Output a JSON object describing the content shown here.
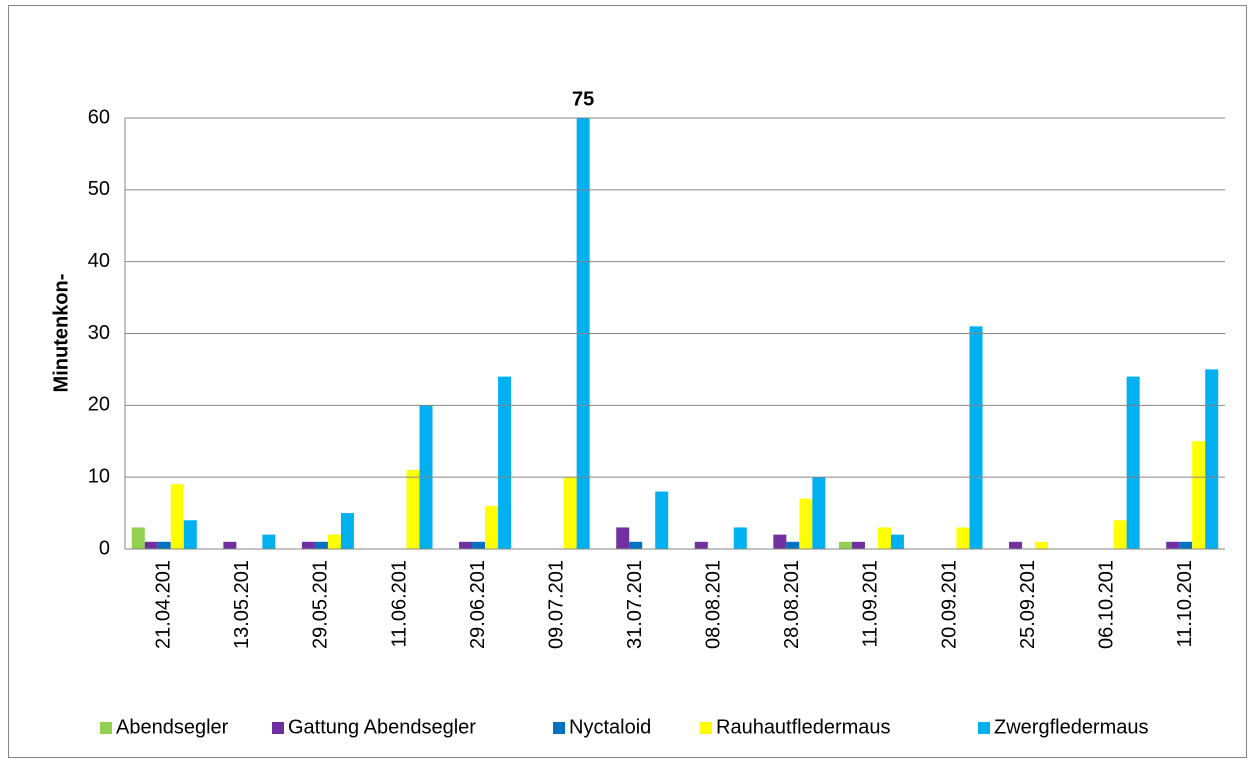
{
  "chart_data": {
    "type": "bar",
    "ylabel": "Minutenkon-",
    "categories": [
      "21.04.201",
      "13.05.201",
      "29.05.201",
      "11.06.201",
      "29.06.201",
      "09.07.201",
      "31.07.201",
      "08.08.201",
      "28.08.201",
      "11.09.201",
      "20.09.201",
      "25.09.201",
      "06.10.201",
      "11.10.201"
    ],
    "series": [
      {
        "name": "Abendsegler",
        "color": "#92d050",
        "values": [
          3,
          0,
          0,
          0,
          0,
          0,
          0,
          0,
          0,
          1,
          0,
          0,
          0,
          0
        ]
      },
      {
        "name": "Gattung Abendsegler",
        "color": "#7030a0",
        "values": [
          1,
          1,
          1,
          0,
          1,
          0,
          3,
          1,
          2,
          1,
          0,
          1,
          0,
          1
        ]
      },
      {
        "name": "Nyctaloid",
        "color": "#0070c0",
        "values": [
          1,
          0,
          1,
          0,
          1,
          0,
          1,
          0,
          1,
          0,
          0,
          0,
          0,
          1
        ]
      },
      {
        "name": "Rauhautfledermaus",
        "color": "#ffff00",
        "values": [
          9,
          0,
          2,
          11,
          6,
          10,
          0,
          0,
          7,
          3,
          3,
          1,
          4,
          15
        ]
      },
      {
        "name": "Zwergfledermaus",
        "color": "#00b0f0",
        "values": [
          4,
          2,
          5,
          20,
          24,
          75,
          8,
          3,
          10,
          2,
          31,
          0,
          24,
          25
        ],
        "value_labels": [
          null,
          null,
          null,
          null,
          null,
          "75",
          null,
          null,
          null,
          null,
          null,
          null,
          null,
          null
        ]
      }
    ],
    "ylim": [
      0,
      60
    ],
    "yticks": [
      0,
      10,
      20,
      30,
      40,
      50,
      60
    ],
    "grid": true,
    "legend": "bottom"
  }
}
